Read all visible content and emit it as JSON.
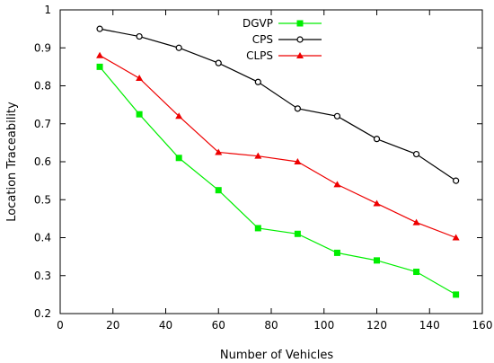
{
  "chart_data": {
    "type": "line",
    "xlabel": "Number of Vehicles",
    "ylabel": "Location Traceability",
    "xlim": [
      0,
      160
    ],
    "ylim": [
      0.2,
      1
    ],
    "xticks": [
      0,
      20,
      40,
      60,
      80,
      100,
      120,
      140,
      160
    ],
    "yticks": [
      0.2,
      0.3,
      0.4,
      0.5,
      0.6,
      0.7,
      0.8,
      0.9,
      1
    ],
    "grid": false,
    "legend_position": "top-right",
    "x": [
      15,
      30,
      45,
      60,
      75,
      90,
      105,
      120,
      135,
      150
    ],
    "series": [
      {
        "name": "DGVP",
        "color": "#00ee00",
        "marker": "filled-square",
        "values": [
          0.85,
          0.725,
          0.61,
          0.525,
          0.425,
          0.41,
          0.36,
          0.34,
          0.31,
          0.25
        ]
      },
      {
        "name": "CPS",
        "color": "#000000",
        "marker": "open-circle",
        "values": [
          0.95,
          0.93,
          0.9,
          0.86,
          0.81,
          0.74,
          0.72,
          0.66,
          0.62,
          0.55
        ]
      },
      {
        "name": "CLPS",
        "color": "#ee0000",
        "marker": "filled-triangle",
        "values": [
          0.88,
          0.82,
          0.72,
          0.625,
          0.615,
          0.6,
          0.54,
          0.49,
          0.44,
          0.4
        ]
      }
    ]
  }
}
